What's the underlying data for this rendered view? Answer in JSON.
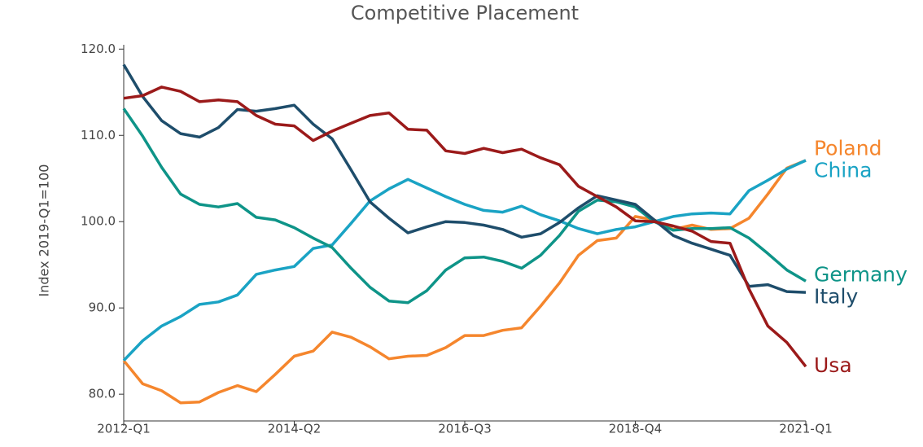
{
  "chart_data": {
    "type": "line",
    "title": "Competitive Placement",
    "y_label": "Index 2019-Q1=100",
    "categories": [
      "2012-Q1",
      null,
      null,
      null,
      null,
      null,
      null,
      null,
      null,
      "2014-Q2",
      null,
      null,
      null,
      null,
      null,
      null,
      null,
      null,
      "2016-Q3",
      null,
      null,
      null,
      null,
      null,
      null,
      null,
      null,
      "2018-Q4",
      null,
      null,
      null,
      null,
      null,
      null,
      null,
      null,
      "2021-Q1"
    ],
    "ylim": [
      76.9,
      120.5
    ],
    "yticks": [
      {
        "value": 80,
        "label": "80.0"
      },
      {
        "value": 90,
        "label": "90.0"
      },
      {
        "value": 100,
        "label": "100.0"
      },
      {
        "value": 110,
        "label": "110.0"
      },
      {
        "value": 120,
        "label": "120.0"
      }
    ],
    "series": [
      {
        "name": "Poland",
        "color": "#f5862d",
        "values": [
          83.9,
          81.2,
          80.4,
          79.0,
          79.1,
          80.2,
          81.0,
          80.3,
          82.3,
          84.4,
          85.0,
          87.2,
          86.6,
          85.5,
          84.1,
          84.4,
          84.5,
          85.4,
          86.8,
          86.8,
          87.4,
          87.7,
          90.2,
          92.9,
          96.1,
          97.8,
          98.1,
          100.6,
          100.2,
          99.1,
          99.6,
          99.1,
          99.2,
          100.4,
          103.2,
          106.2,
          107.1
        ]
      },
      {
        "name": "China",
        "color": "#1aa3c4",
        "values": [
          83.9,
          86.2,
          87.9,
          89.0,
          90.4,
          90.7,
          91.5,
          93.9,
          94.4,
          94.8,
          96.9,
          97.3,
          99.8,
          102.4,
          103.8,
          104.9,
          103.9,
          102.9,
          102.0,
          101.3,
          101.1,
          101.8,
          100.8,
          100.1,
          99.2,
          98.6,
          99.1,
          99.4,
          100.0,
          100.6,
          100.9,
          101.0,
          100.9,
          103.6,
          104.8,
          106.1,
          107.1
        ]
      },
      {
        "name": "Germany",
        "color": "#0e9488",
        "values": [
          113.1,
          109.9,
          106.3,
          103.2,
          102.0,
          101.7,
          102.1,
          100.5,
          100.2,
          99.3,
          98.1,
          97.0,
          94.6,
          92.4,
          90.8,
          90.6,
          92.0,
          94.4,
          95.8,
          95.9,
          95.4,
          94.6,
          96.1,
          98.4,
          101.2,
          102.5,
          102.3,
          101.7,
          100.0,
          99.0,
          99.2,
          99.2,
          99.3,
          98.1,
          96.3,
          94.4,
          93.1
        ]
      },
      {
        "name": "Italy",
        "color": "#1e4d6b",
        "values": [
          118.2,
          114.5,
          111.7,
          110.2,
          109.8,
          110.9,
          113.0,
          112.8,
          113.1,
          113.5,
          111.3,
          109.6,
          106.0,
          102.3,
          100.4,
          98.7,
          99.4,
          100.0,
          99.9,
          99.6,
          99.1,
          98.2,
          98.6,
          99.9,
          101.6,
          103.0,
          102.5,
          102.0,
          100.2,
          98.4,
          97.5,
          96.8,
          96.1,
          92.5,
          92.7,
          91.9,
          91.8
        ]
      },
      {
        "name": "Usa",
        "color": "#9b1a1a",
        "values": [
          114.3,
          114.6,
          115.6,
          115.1,
          113.9,
          114.1,
          113.9,
          112.3,
          111.3,
          111.1,
          109.4,
          110.5,
          111.4,
          112.3,
          112.6,
          110.7,
          110.6,
          108.2,
          107.9,
          108.5,
          108.0,
          108.4,
          107.4,
          106.6,
          104.1,
          102.9,
          101.7,
          100.1,
          100.0,
          99.5,
          98.9,
          97.7,
          97.5,
          92.2,
          87.9,
          86.0,
          83.2
        ]
      }
    ]
  }
}
